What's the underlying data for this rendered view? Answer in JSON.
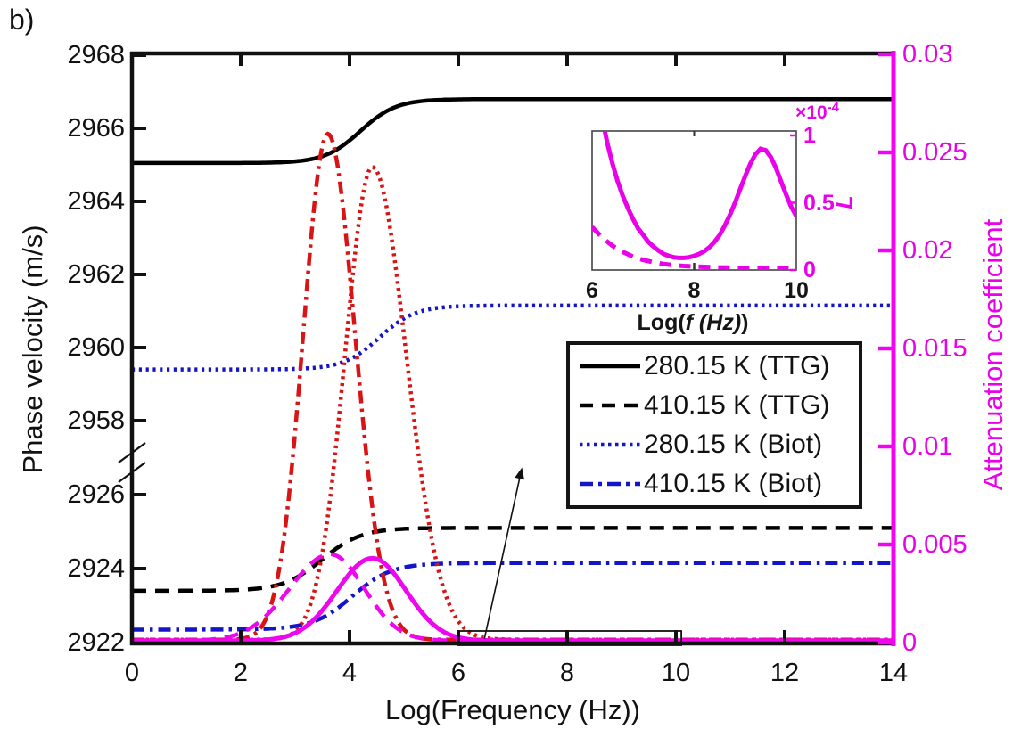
{
  "figure_label": "b)",
  "colors": {
    "black": "#000000",
    "blue": "#1515c8",
    "red": "#d81414",
    "magenta": "#e902e9",
    "axis_magenta": "#f303f3"
  },
  "legend": {
    "items": [
      {
        "label": "280.15 K (TTG)",
        "color": "#000000",
        "style": "solid"
      },
      {
        "label": "410.15 K (TTG)",
        "color": "#000000",
        "style": "dashed"
      },
      {
        "label": "280.15 K (Biot)",
        "color": "#1515c8",
        "style": "dotted"
      },
      {
        "label": "410.15 K (Biot)",
        "color": "#1515c8",
        "style": "dashdot"
      }
    ]
  },
  "chart_data": {
    "type": "line",
    "title": "",
    "xlabel": "Log(Frequency (Hz))",
    "ylabel_left": "Phase velocity (m/s)",
    "ylabel_right": "Attenuation coefficient",
    "xlim": [
      0,
      14
    ],
    "xticks": [
      0,
      2,
      4,
      6,
      8,
      10,
      12,
      14
    ],
    "xticks_top": [
      2,
      4,
      6,
      8,
      10,
      12
    ],
    "grid": false,
    "legend_position": "center-right",
    "y_left": {
      "axis_break_between": [
        2926,
        2958
      ],
      "lower_range": [
        2922,
        2926
      ],
      "upper_range": [
        2958,
        2968
      ],
      "ticks_lower": [
        2922,
        2924,
        2926
      ],
      "ticks_upper": [
        2958,
        2960,
        2962,
        2964,
        2966,
        2968
      ]
    },
    "y_right": {
      "range": [
        0,
        0.03
      ],
      "ticks": [
        0,
        0.005,
        0.01,
        0.015,
        0.02,
        0.025,
        0.03
      ]
    },
    "velocity_series": [
      {
        "name": "280.15 K (TTG)",
        "color": "#000000",
        "style": "solid",
        "v_low": 2965.05,
        "v_high": 2966.8,
        "transition_center": 4.2,
        "transition_width": 0.33
      },
      {
        "name": "410.15 K (TTG)",
        "color": "#000000",
        "style": "dashed",
        "v_low": 2923.4,
        "v_high": 2925.1,
        "transition_center": 3.5,
        "transition_width": 0.36
      },
      {
        "name": "280.15 K (Biot)",
        "color": "#1515c8",
        "style": "dotted",
        "v_low": 2959.4,
        "v_high": 2961.15,
        "transition_center": 4.55,
        "transition_width": 0.33
      },
      {
        "name": "410.15 K (Biot)",
        "color": "#1515c8",
        "style": "dashdot",
        "v_low": 2922.35,
        "v_high": 2924.15,
        "transition_center": 4.05,
        "transition_width": 0.36
      }
    ],
    "attenuation_series": [
      {
        "name": "attenuation 410.15 K TTG",
        "color": "#d81414",
        "style": "dashdot",
        "peak_x": 3.6,
        "peak_value": 0.0258,
        "width_left": 0.45,
        "width_right": 0.5,
        "baseline": 0.00015
      },
      {
        "name": "attenuation 280.15 K TTG",
        "color": "#d81414",
        "style": "dotted",
        "peak_x": 4.42,
        "peak_value": 0.0241,
        "width_left": 0.5,
        "width_right": 0.62,
        "baseline": 0.00015
      },
      {
        "name": "attenuation 280.15 K Biot",
        "color": "#ee07ee",
        "style": "solid",
        "peak_x": 4.42,
        "peak_value": 0.0042,
        "width_left": 0.65,
        "width_right": 0.62,
        "baseline": 0.0001
      },
      {
        "name": "attenuation 410.15 K Biot",
        "color": "#ee07ee",
        "style": "dashed",
        "peak_x": 3.65,
        "peak_value": 0.0044,
        "width_left": 0.75,
        "width_right": 0.62,
        "baseline": 0.0001
      }
    ],
    "zoom_region": {
      "x_range": [
        6,
        10.1
      ],
      "arrow_from": [
        6.48,
        0.0002
      ],
      "arrow_to": [
        7.16,
        0.0088
      ]
    },
    "inset": {
      "xlim": [
        6,
        10
      ],
      "xticks": [
        6,
        8,
        10
      ],
      "ylim_scaled": [
        0,
        1
      ],
      "yticks_scaled": [
        1,
        0.5,
        0
      ],
      "scale_label": {
        "prefix": "×10",
        "sup": "-4"
      },
      "xlabel_parts": {
        "prefix": "Log(",
        "italic": "f (Hz)",
        "suffix": ")"
      },
      "ylabel": "L",
      "solid_curve": [
        [
          6,
          1.62
        ],
        [
          6.1,
          1.35
        ],
        [
          6.2,
          1.12
        ],
        [
          6.3,
          0.94
        ],
        [
          6.4,
          0.79
        ],
        [
          6.5,
          0.66
        ],
        [
          6.6,
          0.55
        ],
        [
          6.7,
          0.46
        ],
        [
          6.8,
          0.38
        ],
        [
          6.9,
          0.31
        ],
        [
          7.0,
          0.26
        ],
        [
          7.1,
          0.21
        ],
        [
          7.2,
          0.175
        ],
        [
          7.3,
          0.145
        ],
        [
          7.4,
          0.12
        ],
        [
          7.5,
          0.105
        ],
        [
          7.6,
          0.095
        ],
        [
          7.7,
          0.09
        ],
        [
          7.8,
          0.09
        ],
        [
          7.9,
          0.095
        ],
        [
          8.0,
          0.105
        ],
        [
          8.1,
          0.12
        ],
        [
          8.2,
          0.14
        ],
        [
          8.3,
          0.17
        ],
        [
          8.4,
          0.21
        ],
        [
          8.5,
          0.26
        ],
        [
          8.6,
          0.33
        ],
        [
          8.7,
          0.41
        ],
        [
          8.8,
          0.5
        ],
        [
          8.9,
          0.6
        ],
        [
          9.0,
          0.7
        ],
        [
          9.1,
          0.79
        ],
        [
          9.2,
          0.86
        ],
        [
          9.3,
          0.9
        ],
        [
          9.4,
          0.89
        ],
        [
          9.5,
          0.84
        ],
        [
          9.6,
          0.76
        ],
        [
          9.7,
          0.66
        ],
        [
          9.8,
          0.56
        ],
        [
          9.9,
          0.47
        ],
        [
          10,
          0.4
        ]
      ],
      "dashed_curve": [
        [
          6,
          0.32
        ],
        [
          6.2,
          0.24
        ],
        [
          6.4,
          0.18
        ],
        [
          6.6,
          0.135
        ],
        [
          6.8,
          0.1
        ],
        [
          7.0,
          0.075
        ],
        [
          7.2,
          0.058
        ],
        [
          7.4,
          0.045
        ],
        [
          7.6,
          0.036
        ],
        [
          7.8,
          0.03
        ],
        [
          8.0,
          0.026
        ],
        [
          8.4,
          0.02
        ],
        [
          8.8,
          0.017
        ],
        [
          9.2,
          0.015
        ],
        [
          9.6,
          0.014
        ],
        [
          10,
          0.013
        ]
      ]
    }
  }
}
